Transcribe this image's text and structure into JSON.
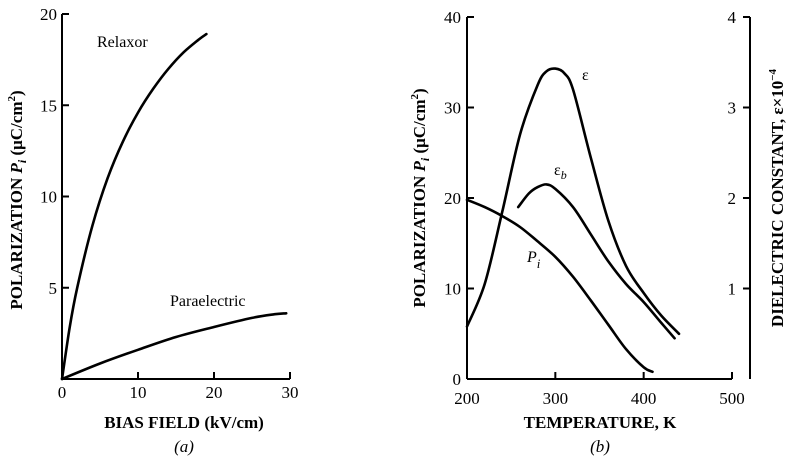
{
  "chart_data": [
    {
      "type": "line",
      "panel": "(a)",
      "xlabel": "BIAS FIELD (kV/cm)",
      "ylabel": "POLARIZATION P_i (μC/cm²)",
      "ylabel_parts": {
        "pre": "POLARIZATION ",
        "sym": "P",
        "sub": "i",
        "post": " (μC/cm",
        "sup": "2",
        "end": ")"
      },
      "xlim": [
        0,
        30
      ],
      "ylim": [
        0,
        20
      ],
      "xticks": [
        "0",
        "10",
        "20",
        "30"
      ],
      "yticks": [
        "5",
        "10",
        "15",
        "20"
      ],
      "series": [
        {
          "name": "Relaxor",
          "x": [
            0,
            1,
            2,
            4,
            6,
            8,
            10,
            12,
            14,
            16,
            18,
            19
          ],
          "y": [
            0,
            2.8,
            5.0,
            8.4,
            11.0,
            13.0,
            14.6,
            15.9,
            17.0,
            17.9,
            18.6,
            18.9
          ]
        },
        {
          "name": "Paraelectric",
          "x": [
            0,
            5,
            10,
            15,
            20,
            25,
            28,
            29.5
          ],
          "y": [
            0,
            0.85,
            1.6,
            2.3,
            2.85,
            3.35,
            3.55,
            3.6
          ]
        }
      ]
    },
    {
      "type": "line",
      "panel": "(b)",
      "xlabel": "TEMPERATURE, K",
      "ylabel": "POLARIZATION P_i (μC/cm²)",
      "ylabel_parts": {
        "pre": "POLARIZATION ",
        "sym": "P",
        "sub": "i",
        "post": " (μC/cm",
        "sup": "2",
        "end": ")"
      },
      "ylabel_right": "DIELECTRIC CONSTANT, ε×10⁻⁴",
      "ylabel_right_parts": {
        "pre": "DIELECTRIC CONSTANT, ε×10",
        "sup": "−4"
      },
      "xlim": [
        200,
        500
      ],
      "ylim": [
        0,
        40
      ],
      "ylim_right": [
        0,
        4
      ],
      "xticks": [
        "200",
        "300",
        "400",
        "500"
      ],
      "yticks": [
        "0",
        "10",
        "20",
        "30",
        "40"
      ],
      "yticks_right": [
        "1",
        "2",
        "3",
        "4"
      ],
      "series": [
        {
          "name": "ε",
          "axis": "right",
          "x": [
            200,
            220,
            240,
            260,
            280,
            290,
            300,
            310,
            320,
            340,
            360,
            380,
            400,
            420,
            440
          ],
          "y": [
            0.58,
            1.05,
            1.85,
            2.7,
            3.25,
            3.4,
            3.43,
            3.38,
            3.2,
            2.45,
            1.75,
            1.25,
            0.95,
            0.7,
            0.5
          ]
        },
        {
          "name": "ε_b",
          "label": {
            "base": "ε",
            "sub": "b"
          },
          "axis": "right",
          "x": [
            258,
            270,
            280,
            290,
            300,
            320,
            340,
            360,
            380,
            400,
            420,
            435
          ],
          "y": [
            1.9,
            2.05,
            2.12,
            2.15,
            2.1,
            1.9,
            1.6,
            1.3,
            1.05,
            0.85,
            0.62,
            0.45
          ]
        },
        {
          "name": "P_i",
          "label": {
            "base": "P",
            "sub": "i"
          },
          "axis": "left",
          "x": [
            200,
            220,
            240,
            260,
            280,
            300,
            320,
            340,
            360,
            380,
            400,
            410
          ],
          "y": [
            19.8,
            19.0,
            18.0,
            16.8,
            15.2,
            13.5,
            11.3,
            8.7,
            6.0,
            3.3,
            1.3,
            0.8
          ]
        }
      ]
    }
  ]
}
